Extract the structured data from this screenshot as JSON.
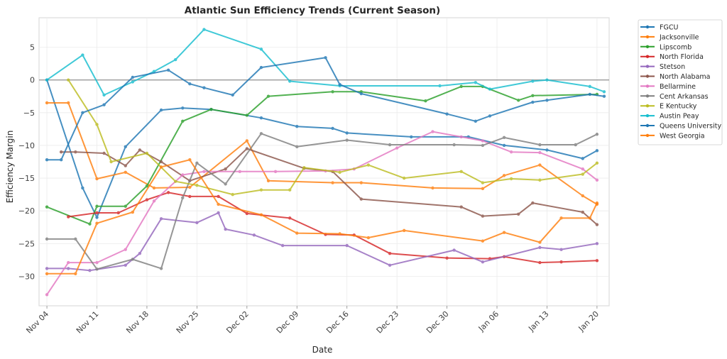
{
  "chart_data": {
    "type": "line",
    "title": "Atlantic Sun Efficiency Trends (Current Season)",
    "xlabel": "Date",
    "ylabel": "Efficiency Margin",
    "x_unit": "days since Nov 04",
    "xlim": [
      -1.1,
      78.7
    ],
    "ylim": [
      -34.5,
      9.5
    ],
    "grid": true,
    "legend_position": "outside-top-right",
    "reference_line": {
      "y": 0,
      "color": "#999999"
    },
    "x_ticks": [
      {
        "day": 0,
        "label": "Nov 04"
      },
      {
        "day": 7,
        "label": "Nov 11"
      },
      {
        "day": 14,
        "label": "Nov 18"
      },
      {
        "day": 21,
        "label": "Nov 25"
      },
      {
        "day": 28,
        "label": "Dec 02"
      },
      {
        "day": 35,
        "label": "Dec 09"
      },
      {
        "day": 42,
        "label": "Dec 16"
      },
      {
        "day": 49,
        "label": "Dec 23"
      },
      {
        "day": 56,
        "label": "Dec 30"
      },
      {
        "day": 63,
        "label": "Jan 06"
      },
      {
        "day": 70,
        "label": "Jan 13"
      },
      {
        "day": 77,
        "label": "Jan 20"
      }
    ],
    "y_ticks": [
      5,
      0,
      -5,
      -10,
      -15,
      -20,
      -25,
      -30
    ],
    "series": [
      {
        "name": "FGCU",
        "color": "#1f77b4",
        "x": [
          0,
          5,
          7,
          11,
          16,
          19,
          23,
          30,
          35,
          40,
          42,
          51,
          59,
          64,
          70,
          75,
          77
        ],
        "y": [
          0,
          -16.5,
          -21,
          -10.2,
          -4.6,
          -4.3,
          -4.5,
          -5.8,
          -7.1,
          -7.4,
          -8.1,
          -8.7,
          -8.7,
          -10,
          -10.7,
          -12,
          -10.8
        ]
      },
      {
        "name": "Jacksonville",
        "color": "#ff7f0e",
        "x": [
          0,
          3,
          7,
          11,
          15,
          20,
          28,
          31,
          40,
          44,
          54,
          61,
          64,
          69,
          75,
          77
        ],
        "y": [
          -3.5,
          -3.5,
          -15.1,
          -14.1,
          -16.5,
          -16.4,
          -9.3,
          -15.4,
          -15.7,
          -15.7,
          -16.5,
          -16.6,
          -14.6,
          -13,
          -17.7,
          -19
        ]
      },
      {
        "name": "Lipscomb",
        "color": "#2ca02c",
        "x": [
          0,
          6,
          7,
          11,
          14,
          19,
          23,
          28,
          31,
          40,
          44,
          53,
          58,
          61,
          66,
          68,
          77
        ],
        "y": [
          -19.4,
          -22.0,
          -19.3,
          -19.3,
          -16.2,
          -6.3,
          -4.5,
          -5.4,
          -2.5,
          -1.8,
          -1.8,
          -3.2,
          -1.0,
          -1.0,
          -3.1,
          -2.4,
          -2.2
        ]
      },
      {
        "name": "North Florida",
        "color": "#d62728",
        "x": [
          3,
          7,
          10,
          14,
          17,
          20,
          24,
          28,
          34,
          39,
          43,
          48,
          56,
          62,
          64,
          69,
          72,
          77
        ],
        "y": [
          -20.9,
          -20.3,
          -20.3,
          -18.3,
          -17.2,
          -17.8,
          -17.8,
          -20.4,
          -21.1,
          -23.6,
          -23.7,
          -26.5,
          -27.2,
          -27.3,
          -27.0,
          -27.9,
          -27.8,
          -27.6
        ]
      },
      {
        "name": "Stetson",
        "color": "#9467bd",
        "x": [
          0,
          3,
          6,
          11,
          13,
          16,
          21,
          24,
          25,
          29,
          33,
          42,
          48,
          57,
          61,
          69,
          72,
          77
        ],
        "y": [
          -28.8,
          -28.8,
          -29.1,
          -28.3,
          -26.5,
          -21.2,
          -21.8,
          -20.3,
          -22.8,
          -23.7,
          -25.3,
          -25.3,
          -28.3,
          -26.0,
          -27.8,
          -25.6,
          -25.9,
          -25.0
        ]
      },
      {
        "name": "North Alabama",
        "color": "#8c564b",
        "x": [
          2,
          4,
          8,
          11,
          13,
          16,
          20,
          25,
          28,
          36,
          40,
          44,
          58,
          61,
          66,
          68,
          75,
          77
        ],
        "y": [
          -11.0,
          -11.0,
          -11.2,
          -13.1,
          -10.7,
          -12.5,
          -15.4,
          -13.6,
          -10.5,
          -13.5,
          -14.0,
          -18.2,
          -19.4,
          -20.8,
          -20.5,
          -18.8,
          -20.2,
          -22.1
        ]
      },
      {
        "name": "Bellarmine",
        "color": "#e377c2",
        "x": [
          0,
          3,
          7,
          11,
          15,
          19,
          22,
          27,
          32,
          39,
          43,
          49,
          54,
          58,
          61,
          65,
          69,
          75,
          77
        ],
        "y": [
          -32.8,
          -27.9,
          -27.9,
          -25.9,
          -18.5,
          -14.5,
          -14.0,
          -14.0,
          -14.0,
          -13.9,
          -13.6,
          -10.4,
          -7.9,
          -8.7,
          -9.3,
          -11.0,
          -11.1,
          -13.6,
          -15.3
        ]
      },
      {
        "name": "Cent Arkansas",
        "color": "#7f7f7f",
        "x": [
          0,
          4,
          7,
          12,
          16,
          19,
          21,
          25,
          30,
          35,
          42,
          48,
          57,
          61,
          64,
          69,
          74,
          77
        ],
        "y": [
          -24.3,
          -24.3,
          -28.9,
          -27.4,
          -28.8,
          -18.0,
          -12.7,
          -15.9,
          -8.2,
          -10.2,
          -9.2,
          -9.9,
          -9.9,
          -10.0,
          -8.8,
          -9.9,
          -9.9,
          -8.3
        ]
      },
      {
        "name": "E Kentucky",
        "color": "#bcbd22",
        "x": [
          3,
          7,
          9,
          14,
          18,
          21,
          26,
          30,
          34,
          36,
          41,
          45,
          50,
          58,
          61,
          65,
          69,
          75,
          77
        ],
        "y": [
          0,
          -6.8,
          -12.5,
          -11.2,
          -15.5,
          -16.1,
          -17.5,
          -16.8,
          -16.8,
          -13.4,
          -14.1,
          -13.0,
          -15.0,
          -14.0,
          -15.7,
          -15.1,
          -15.3,
          -14.4,
          -12.7
        ]
      },
      {
        "name": "Austin Peay",
        "color": "#17becf",
        "x": [
          0,
          5,
          8,
          12,
          15,
          18,
          22,
          30,
          34,
          41,
          55,
          60,
          62,
          68,
          70,
          76,
          78
        ],
        "y": [
          0,
          3.8,
          -2.3,
          -0.3,
          1.3,
          3.1,
          7.7,
          4.7,
          -0.2,
          -0.9,
          -0.9,
          -0.4,
          -1.4,
          -0.2,
          0,
          -1.0,
          -1.8
        ]
      },
      {
        "name": "Queens University",
        "color": "#1f77b4",
        "x": [
          0,
          2,
          5,
          8,
          12,
          17,
          20,
          22,
          26,
          30,
          39,
          41,
          44,
          56,
          60,
          62,
          68,
          70,
          76,
          78
        ],
        "y": [
          -12.2,
          -12.2,
          -5.0,
          -3.8,
          0.4,
          1.5,
          -0.6,
          -1.2,
          -2.3,
          1.9,
          3.4,
          -0.7,
          -2.1,
          -5.2,
          -6.3,
          -5.5,
          -3.4,
          -3.1,
          -2.2,
          -2.5
        ]
      },
      {
        "name": "West Georgia",
        "color": "#ff7f0e",
        "x": [
          0,
          4,
          7,
          12,
          16,
          20,
          24,
          30,
          35,
          41,
          45,
          50,
          61,
          64,
          69,
          72,
          76,
          77
        ],
        "y": [
          -29.6,
          -29.6,
          -21.9,
          -20.2,
          -13.3,
          -12.2,
          -19.0,
          -20.6,
          -23.4,
          -23.5,
          -24.1,
          -23.0,
          -24.6,
          -23.3,
          -24.8,
          -21.1,
          -21.1,
          -18.8
        ]
      }
    ]
  }
}
